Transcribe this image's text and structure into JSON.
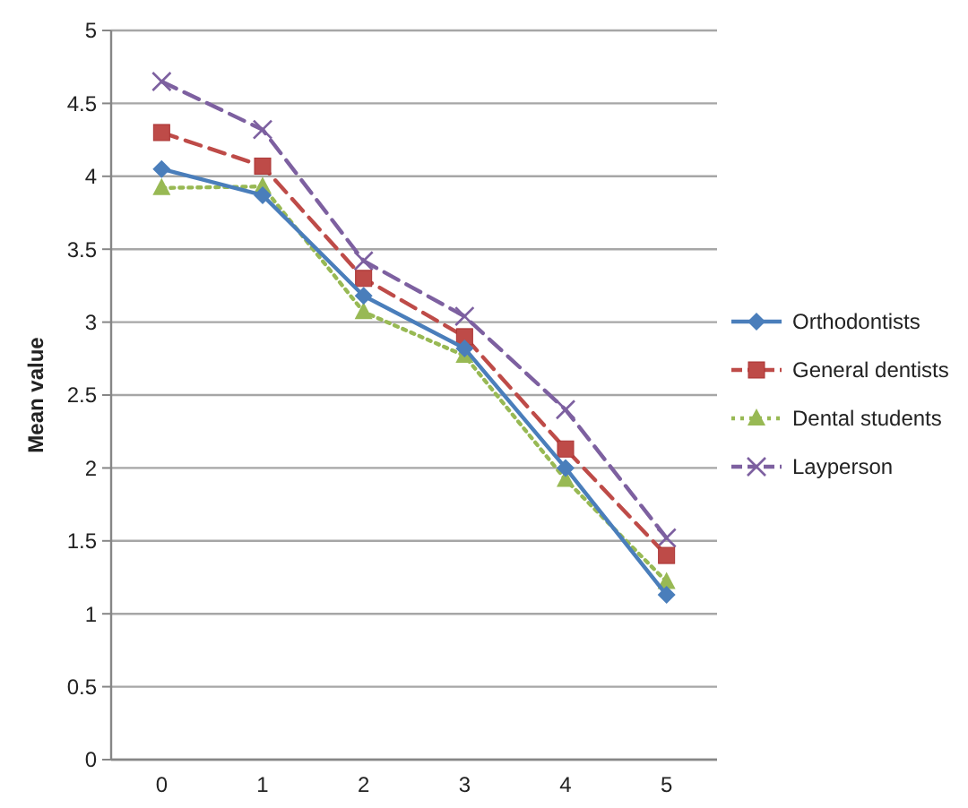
{
  "chart_data": {
    "type": "line",
    "ylabel": "Mean value",
    "categories": [
      "0",
      "1",
      "2",
      "3",
      "4",
      "5"
    ],
    "ylim": [
      0,
      5
    ],
    "yticks": [
      0,
      0.5,
      1,
      1.5,
      2,
      2.5,
      3,
      3.5,
      4,
      4.5,
      5
    ],
    "grid": "y",
    "legend": "right",
    "series": [
      {
        "name": "Orthodontists",
        "color": "#4a7ebb",
        "marker": "diamond",
        "line_style": "solid",
        "values": [
          4.05,
          3.87,
          3.18,
          2.82,
          2.0,
          1.13
        ]
      },
      {
        "name": "General dentists",
        "color": "#be4b48",
        "marker": "square",
        "line_style": "dashed",
        "values": [
          4.3,
          4.07,
          3.3,
          2.9,
          2.13,
          1.4
        ]
      },
      {
        "name": "Dental students",
        "color": "#98b954",
        "marker": "triangle",
        "line_style": "dotted",
        "values": [
          3.92,
          3.93,
          3.07,
          2.77,
          1.92,
          1.22
        ]
      },
      {
        "name": "Layperson",
        "color": "#7d60a0",
        "marker": "cross",
        "line_style": "dashed",
        "values": [
          4.65,
          4.32,
          3.42,
          3.04,
          2.4,
          1.52
        ]
      }
    ]
  }
}
